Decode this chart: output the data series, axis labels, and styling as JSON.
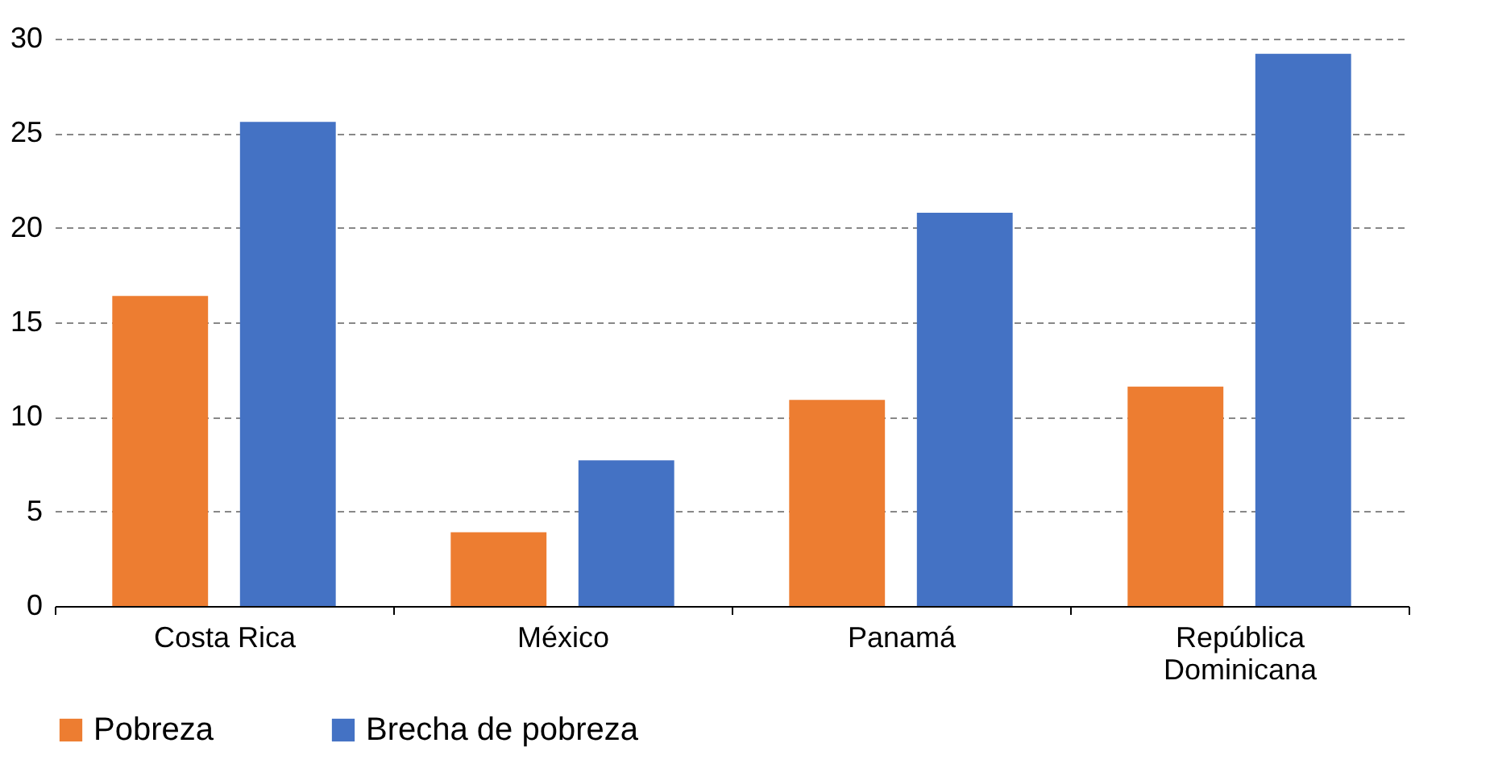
{
  "chart_data": {
    "type": "bar",
    "categories": [
      "Costa Rica",
      "México",
      "Panamá",
      "República Dominicana"
    ],
    "series": [
      {
        "name": "Pobreza",
        "color": "#ed7d31",
        "values": [
          16.4,
          3.9,
          10.9,
          11.6
        ]
      },
      {
        "name": "Brecha de pobreza",
        "color": "#4472c4",
        "values": [
          25.6,
          7.7,
          20.8,
          29.2
        ]
      }
    ],
    "ylim": [
      0,
      30
    ],
    "yticks": [
      0,
      5,
      10,
      15,
      20,
      25,
      30
    ],
    "grid": "y",
    "legend": "bottom"
  }
}
